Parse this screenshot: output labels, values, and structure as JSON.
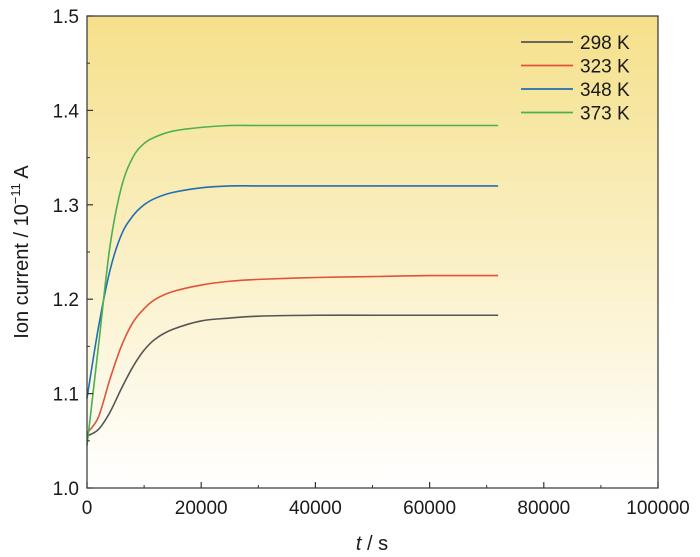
{
  "chart_data": {
    "type": "line",
    "xlabel_italic": "t",
    "xlabel_rest": " / s",
    "ylabel_main": "Ion current / 10",
    "ylabel_sup": "−11",
    "ylabel_unit": " A",
    "xlim": [
      0,
      100000
    ],
    "ylim": [
      1.0,
      1.5
    ],
    "x_ticks": [
      0,
      20000,
      40000,
      60000,
      80000,
      100000
    ],
    "x_tick_labels": [
      "0",
      "20000",
      "40000",
      "60000",
      "80000",
      "100000"
    ],
    "y_ticks": [
      1.0,
      1.1,
      1.2,
      1.3,
      1.4,
      1.5
    ],
    "y_tick_labels": [
      "1.0",
      "1.1",
      "1.2",
      "1.3",
      "1.4",
      "1.5"
    ],
    "grid": false,
    "legend_position": "top-right",
    "background_gradient": {
      "top": "#f5e08a",
      "bottom": "#ffffff"
    },
    "series": [
      {
        "name": "298 K",
        "color": "#555555",
        "x": [
          0,
          2000,
          4000,
          6000,
          8000,
          10000,
          12000,
          15000,
          20000,
          25000,
          30000,
          40000,
          50000,
          60000,
          72000
        ],
        "y": [
          1.055,
          1.062,
          1.08,
          1.105,
          1.128,
          1.146,
          1.158,
          1.168,
          1.177,
          1.18,
          1.182,
          1.183,
          1.183,
          1.183,
          1.183
        ]
      },
      {
        "name": "323 K",
        "color": "#e0533b",
        "x": [
          0,
          2000,
          4000,
          6000,
          8000,
          10000,
          12000,
          15000,
          20000,
          25000,
          30000,
          40000,
          50000,
          60000,
          72000
        ],
        "y": [
          1.058,
          1.075,
          1.115,
          1.15,
          1.175,
          1.19,
          1.2,
          1.208,
          1.215,
          1.219,
          1.221,
          1.223,
          1.224,
          1.225,
          1.225
        ]
      },
      {
        "name": "348 K",
        "color": "#1f6fb2",
        "x": [
          0,
          2000,
          4000,
          6000,
          8000,
          10000,
          12000,
          15000,
          20000,
          25000,
          30000,
          40000,
          50000,
          60000,
          72000
        ],
        "y": [
          1.095,
          1.17,
          1.23,
          1.268,
          1.288,
          1.3,
          1.307,
          1.313,
          1.318,
          1.32,
          1.32,
          1.32,
          1.32,
          1.32,
          1.32
        ]
      },
      {
        "name": "373 K",
        "color": "#4caf50",
        "x": [
          0,
          2000,
          4000,
          6000,
          8000,
          10000,
          12000,
          15000,
          20000,
          25000,
          30000,
          40000,
          50000,
          60000,
          72000
        ],
        "y": [
          1.045,
          1.15,
          1.255,
          1.318,
          1.35,
          1.365,
          1.372,
          1.378,
          1.382,
          1.384,
          1.384,
          1.384,
          1.384,
          1.384,
          1.384
        ]
      }
    ]
  }
}
